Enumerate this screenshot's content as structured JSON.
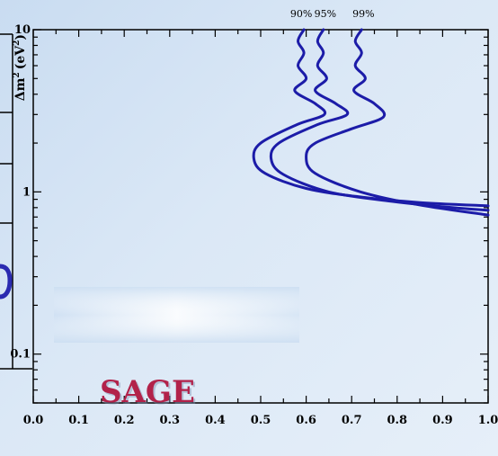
{
  "chart_data": {
    "type": "line",
    "title": "",
    "xlabel": "",
    "ylabel": "Δm² (eV²)",
    "ylabel_parts": {
      "main": "Δm",
      "sup": "2",
      "units": "(eV",
      "units_sup": "2",
      "close": ")"
    },
    "xlim": [
      0.0,
      1.0
    ],
    "ylim": [
      0.05,
      10
    ],
    "yscale": "log",
    "grid": false,
    "x_tick_labels": [
      "0.0",
      "0.1",
      "0.2",
      "0.3",
      "0.4",
      "0.5",
      "0.6",
      "0.7",
      "0.8",
      "0.9",
      "1.0"
    ],
    "y_tick_labels": [
      "10",
      "1",
      "0.1"
    ],
    "annotation": "SAGE",
    "series": [
      {
        "name": "90%",
        "color": "#1c1ca8",
        "points": [
          [
            0.595,
            10
          ],
          [
            0.582,
            8.5
          ],
          [
            0.595,
            7.2
          ],
          [
            0.582,
            6.0
          ],
          [
            0.6,
            5.0
          ],
          [
            0.575,
            4.2
          ],
          [
            0.62,
            3.5
          ],
          [
            0.64,
            3.0
          ],
          [
            0.58,
            2.6
          ],
          [
            0.5,
            2.0
          ],
          [
            0.485,
            1.6
          ],
          [
            0.51,
            1.3
          ],
          [
            0.6,
            1.05
          ],
          [
            0.72,
            0.93
          ],
          [
            0.85,
            0.86
          ],
          [
            1.0,
            0.82
          ]
        ]
      },
      {
        "name": "95%",
        "color": "#1c1ca8",
        "points": [
          [
            0.638,
            10
          ],
          [
            0.625,
            8.5
          ],
          [
            0.638,
            7.2
          ],
          [
            0.625,
            6.0
          ],
          [
            0.645,
            5.0
          ],
          [
            0.62,
            4.2
          ],
          [
            0.665,
            3.5
          ],
          [
            0.69,
            3.0
          ],
          [
            0.625,
            2.6
          ],
          [
            0.54,
            2.0
          ],
          [
            0.523,
            1.6
          ],
          [
            0.55,
            1.28
          ],
          [
            0.65,
            1.0
          ],
          [
            0.78,
            0.88
          ],
          [
            0.9,
            0.81
          ],
          [
            1.0,
            0.77
          ]
        ]
      },
      {
        "name": "99%",
        "color": "#1c1ca8",
        "points": [
          [
            0.722,
            10
          ],
          [
            0.708,
            8.5
          ],
          [
            0.722,
            7.2
          ],
          [
            0.708,
            6.0
          ],
          [
            0.73,
            5.0
          ],
          [
            0.705,
            4.2
          ],
          [
            0.75,
            3.5
          ],
          [
            0.77,
            2.9
          ],
          [
            0.7,
            2.45
          ],
          [
            0.62,
            2.0
          ],
          [
            0.6,
            1.65
          ],
          [
            0.62,
            1.3
          ],
          [
            0.72,
            1.0
          ],
          [
            0.85,
            0.83
          ],
          [
            1.0,
            0.72
          ]
        ]
      }
    ]
  }
}
